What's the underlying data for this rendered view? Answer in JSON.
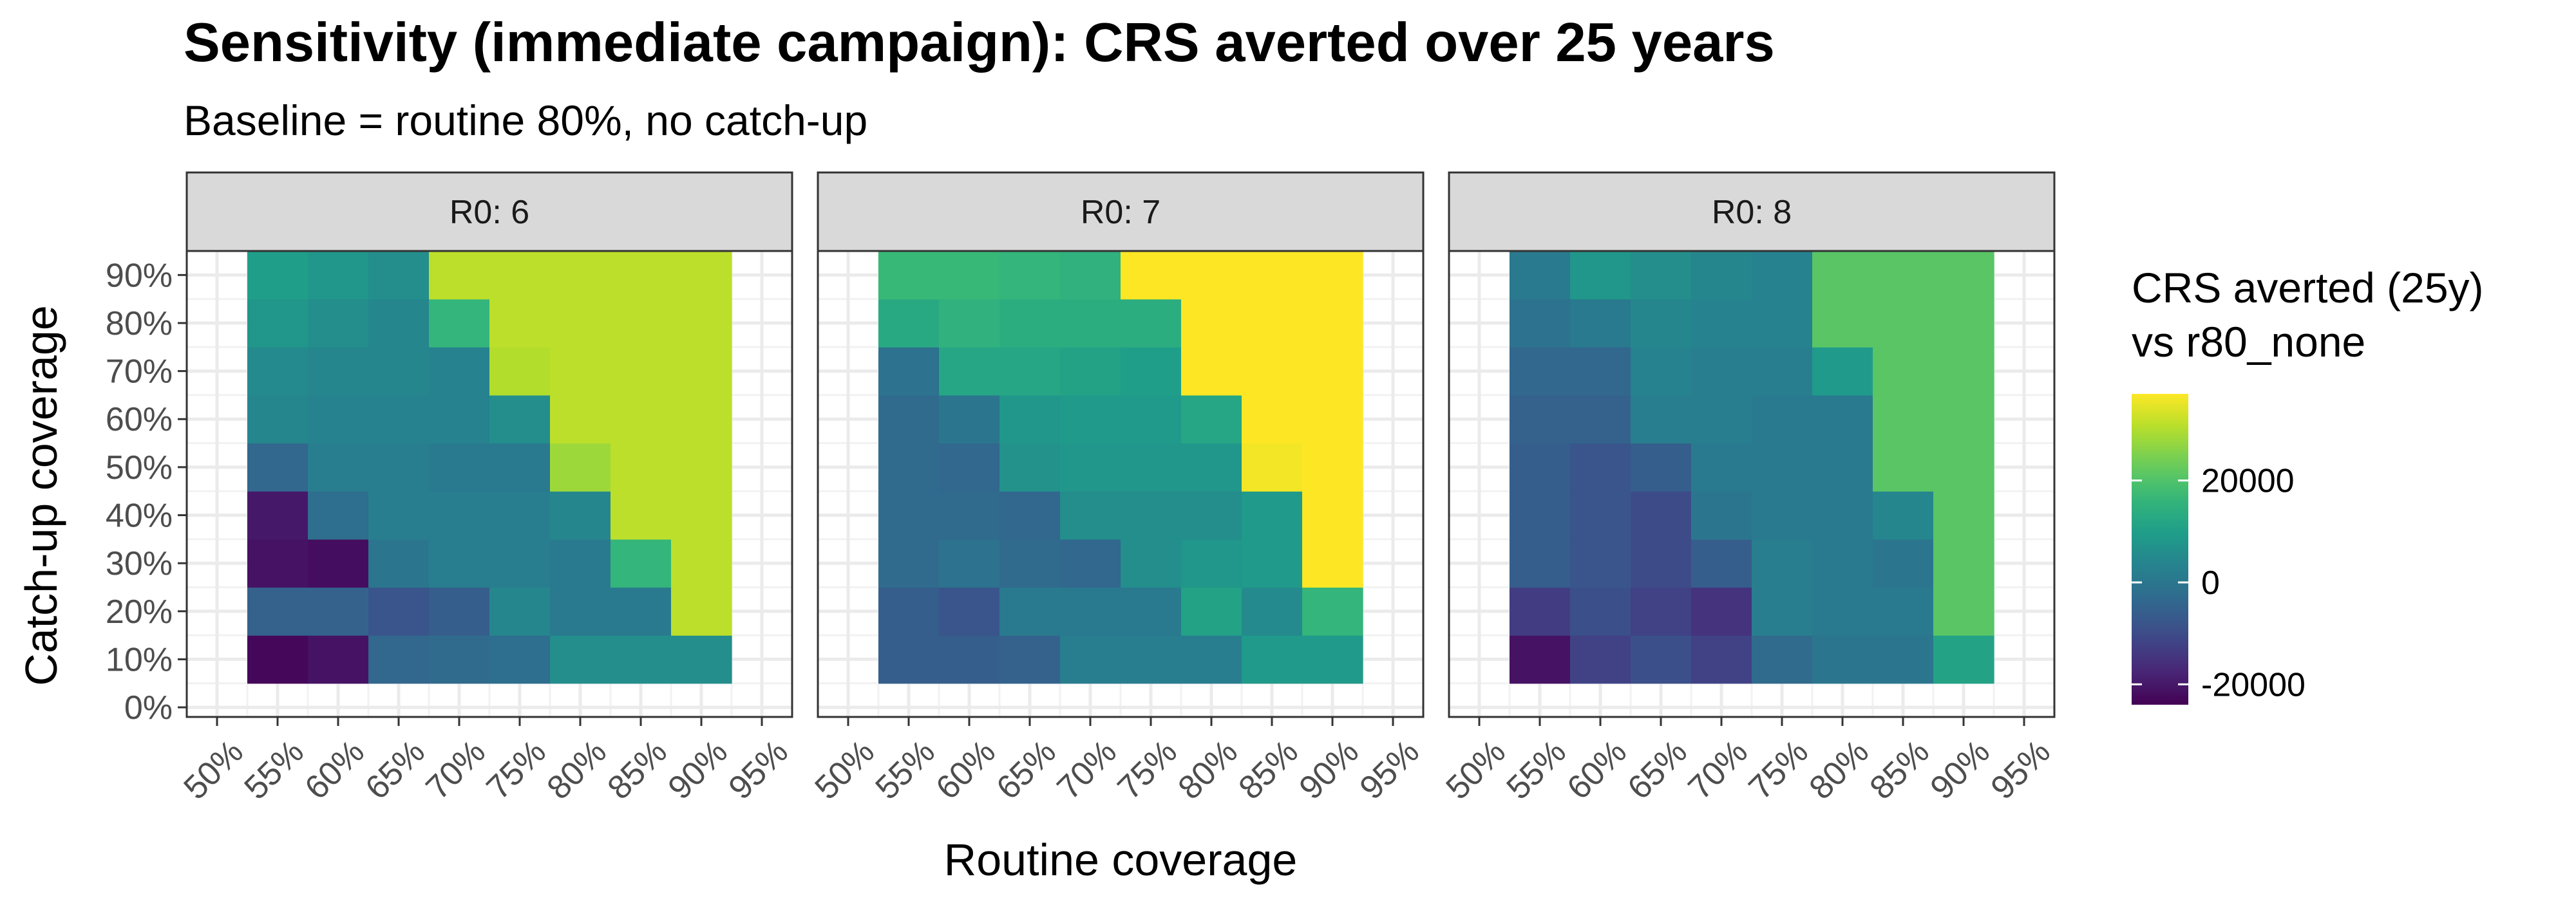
{
  "chart_data": {
    "type": "heatmap",
    "title": "Sensitivity (immediate campaign): CRS averted over 25 years",
    "subtitle": "Baseline = routine 80%, no catch-up",
    "xlabel": "Routine coverage",
    "ylabel": "Catch-up coverage",
    "x_ticks": [
      "50%",
      "55%",
      "60%",
      "65%",
      "70%",
      "75%",
      "80%",
      "85%",
      "90%",
      "95%"
    ],
    "y_ticks": [
      "0%",
      "10%",
      "20%",
      "30%",
      "40%",
      "50%",
      "60%",
      "70%",
      "80%",
      "90%"
    ],
    "x_values": [
      55,
      60,
      65,
      70,
      75,
      80,
      85,
      90
    ],
    "y_values": [
      10,
      20,
      30,
      40,
      50,
      60,
      70,
      80,
      90
    ],
    "xlim": [
      47.5,
      97.5
    ],
    "ylim": [
      -2,
      95
    ],
    "grid": true,
    "legend": {
      "title_lines": [
        "CRS averted (25y)",
        "vs r80_none"
      ],
      "position": "right",
      "breaks": [
        20000,
        0,
        -20000
      ],
      "break_labels": [
        "20000",
        "0",
        "-20000"
      ],
      "min": -24000,
      "max": 37000
    },
    "facets": [
      {
        "label": "R0: 6",
        "z_rows_y10_to_y90": [
          [
            -23000,
            -21000,
            -4000,
            -3000,
            -2000,
            6000,
            6000,
            6000
          ],
          [
            -5000,
            -5000,
            -8000,
            -6000,
            4000,
            1000,
            1000,
            31000
          ],
          [
            -21000,
            -22000,
            0,
            2000,
            2000,
            1000,
            16000,
            31000
          ],
          [
            -20000,
            -2000,
            2000,
            2000,
            2000,
            4000,
            31000,
            31000
          ],
          [
            -4000,
            2000,
            2000,
            1000,
            1000,
            28000,
            31000,
            31000
          ],
          [
            4000,
            3000,
            3000,
            3000,
            6000,
            31000,
            31000,
            31000
          ],
          [
            5000,
            4000,
            4000,
            3000,
            30000,
            31000,
            31000,
            31000
          ],
          [
            8000,
            6000,
            4000,
            16000,
            31000,
            31000,
            31000,
            31000
          ],
          [
            10000,
            8000,
            6000,
            31000,
            31000,
            31000,
            31000,
            31000
          ]
        ]
      },
      {
        "label": "R0: 7",
        "z_rows_y10_to_y90": [
          [
            -6000,
            -6000,
            -5000,
            2000,
            2000,
            2000,
            9000,
            9000
          ],
          [
            -6000,
            -8000,
            1000,
            1000,
            1000,
            11000,
            5000,
            16000
          ],
          [
            -3000,
            -1000,
            -3000,
            -4000,
            6000,
            8000,
            9000,
            37000
          ],
          [
            -3000,
            -3000,
            -4000,
            6000,
            6000,
            6000,
            9000,
            37000
          ],
          [
            -3000,
            -4000,
            7000,
            8000,
            8000,
            8000,
            36000,
            37000
          ],
          [
            -3000,
            0,
            8000,
            9000,
            9000,
            12000,
            37000,
            37000
          ],
          [
            -1000,
            12000,
            12000,
            11000,
            10000,
            37000,
            37000,
            37000
          ],
          [
            13000,
            15000,
            14000,
            14000,
            14000,
            37000,
            37000,
            37000
          ],
          [
            17000,
            17000,
            16000,
            15000,
            37000,
            37000,
            37000,
            37000
          ]
        ]
      },
      {
        "label": "R0: 8",
        "z_rows_y10_to_y90": [
          [
            -21000,
            -12000,
            -9000,
            -12000,
            -3000,
            0,
            0,
            11000
          ],
          [
            -13000,
            -9000,
            -12000,
            -15000,
            2000,
            1000,
            1000,
            21000
          ],
          [
            -6000,
            -8000,
            -10000,
            -6000,
            2000,
            1000,
            0,
            21000
          ],
          [
            -6000,
            -8000,
            -10000,
            0,
            1000,
            1000,
            4000,
            21000
          ],
          [
            -6000,
            -8000,
            -6000,
            1000,
            1000,
            1000,
            21000,
            21000
          ],
          [
            -5000,
            -5000,
            2000,
            2000,
            1000,
            1000,
            21000,
            21000
          ],
          [
            -4000,
            -4000,
            3000,
            2000,
            2000,
            9000,
            21000,
            21000
          ],
          [
            -1000,
            1000,
            4000,
            3000,
            3000,
            21000,
            21000,
            21000
          ],
          [
            1000,
            8000,
            6000,
            4000,
            3000,
            21000,
            21000,
            21000
          ]
        ]
      }
    ]
  }
}
